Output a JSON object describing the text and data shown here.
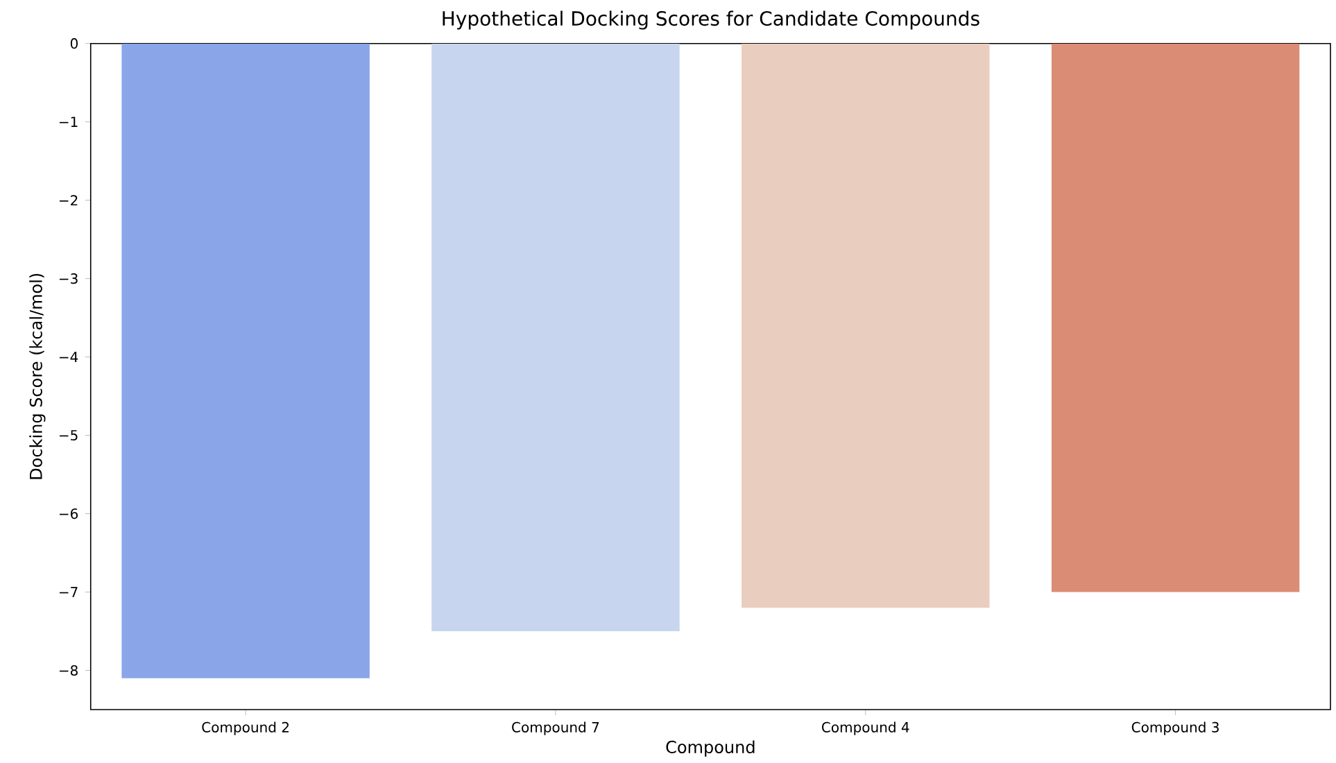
{
  "chart_data": {
    "type": "bar",
    "title": "Hypothetical Docking Scores for Candidate Compounds",
    "xlabel": "Compound",
    "ylabel": "Docking Score (kcal/mol)",
    "categories": [
      "Compound 2",
      "Compound 7",
      "Compound 4",
      "Compound 3"
    ],
    "values": [
      -8.1,
      -7.5,
      -7.2,
      -7.0
    ],
    "colors": [
      "#8aa5e8",
      "#c7d5ef",
      "#e9cdbf",
      "#db8c75"
    ],
    "ylim": [
      -8.5,
      0
    ],
    "yticks": [
      {
        "value": -8,
        "label": "−8"
      },
      {
        "value": -7,
        "label": "−7"
      },
      {
        "value": -6,
        "label": "−6"
      },
      {
        "value": -5,
        "label": "−5"
      },
      {
        "value": -4,
        "label": "−4"
      },
      {
        "value": -3,
        "label": "−3"
      },
      {
        "value": -2,
        "label": "−2"
      },
      {
        "value": -1,
        "label": "−1"
      },
      0
    ]
  }
}
